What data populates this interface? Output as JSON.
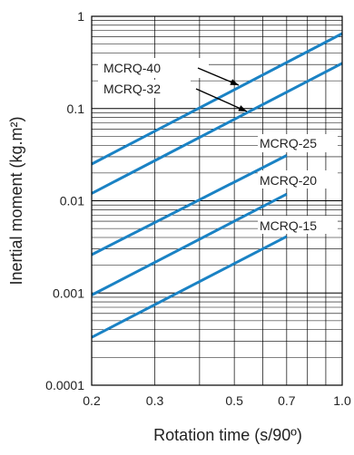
{
  "chart_data": {
    "type": "line",
    "title": "",
    "xlabel": "Rotation time (s/90º)",
    "ylabel": "Inertial moment (kg.m²)",
    "x_scale": "log",
    "y_scale": "log",
    "xlim": [
      0.2,
      1.0
    ],
    "ylim": [
      0.0001,
      1
    ],
    "x_ticks": [
      {
        "value": 0.2,
        "label": "0.2"
      },
      {
        "value": 0.3,
        "label": "0.3"
      },
      {
        "value": 0.5,
        "label": "0.5"
      },
      {
        "value": 0.7,
        "label": "0.7"
      },
      {
        "value": 1.0,
        "label": "1.0"
      }
    ],
    "y_ticks": [
      {
        "value": 1,
        "label": "1"
      },
      {
        "value": 0.1,
        "label": "0.1"
      },
      {
        "value": 0.01,
        "label": "0.01"
      },
      {
        "value": 0.001,
        "label": "0.001"
      },
      {
        "value": 0.0001,
        "label": "0.0001"
      }
    ],
    "grid": true,
    "line_color": "#1a82c4",
    "series": [
      {
        "name": "MCRQ-40",
        "x": [
          0.2,
          1.0
        ],
        "y": [
          0.025,
          0.65
        ]
      },
      {
        "name": "MCRQ-32",
        "x": [
          0.2,
          1.0
        ],
        "y": [
          0.012,
          0.31
        ]
      },
      {
        "name": "MCRQ-25",
        "x": [
          0.2,
          0.7
        ],
        "y": [
          0.0026,
          0.031
        ]
      },
      {
        "name": "MCRQ-20",
        "x": [
          0.2,
          0.7
        ],
        "y": [
          0.00095,
          0.0118
        ]
      },
      {
        "name": "MCRQ-15",
        "x": [
          0.2,
          0.7
        ],
        "y": [
          0.00033,
          0.0041
        ]
      }
    ]
  }
}
